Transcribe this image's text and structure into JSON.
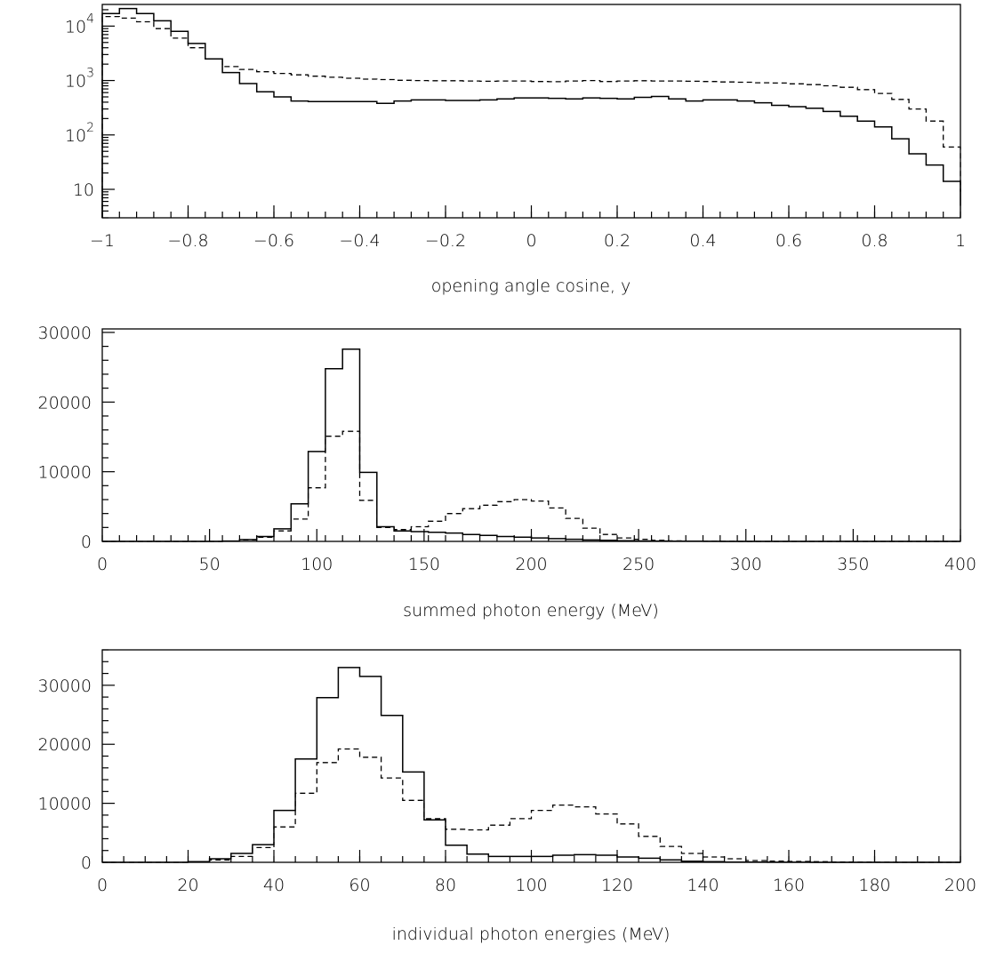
{
  "chart_data": [
    {
      "type": "histogram",
      "title": "",
      "xlabel": "opening angle cosine, y",
      "ylabel": "",
      "xlim": [
        -1,
        1
      ],
      "ylim": [
        3,
        25000
      ],
      "yscale": "log",
      "grid": false,
      "xticks": [
        -1,
        -0.8,
        -0.6,
        -0.4,
        -0.2,
        0,
        0.2,
        0.4,
        0.6,
        0.8,
        1
      ],
      "xtick_labels": [
        "−1",
        "−0.8",
        "−0.6",
        "−0.4",
        "−0.2",
        "0",
        "0.2",
        "0.4",
        "0.6",
        "0.8",
        "1"
      ],
      "yticks": [
        {
          "value": 10000,
          "base": "10",
          "exp": "4"
        },
        {
          "value": 1000,
          "base": "10",
          "exp": "3"
        },
        {
          "value": 100,
          "base": "10",
          "exp": "2"
        },
        {
          "value": 10,
          "base": "10",
          "exp": ""
        }
      ],
      "bin_edges_start": -1,
      "bin_width": 0.04,
      "series": [
        {
          "style": "solid",
          "values": [
            17000,
            21000,
            17000,
            12500,
            8000,
            4800,
            2500,
            1400,
            880,
            620,
            500,
            420,
            410,
            410,
            410,
            410,
            380,
            420,
            440,
            440,
            430,
            430,
            440,
            460,
            480,
            480,
            470,
            460,
            480,
            470,
            460,
            490,
            510,
            460,
            420,
            440,
            440,
            420,
            390,
            350,
            330,
            310,
            270,
            220,
            180,
            140,
            85,
            45,
            28,
            14,
            5
          ]
        },
        {
          "style": "dashed",
          "values": [
            15000,
            14000,
            12000,
            9000,
            6000,
            4000,
            2500,
            1800,
            1600,
            1450,
            1350,
            1270,
            1200,
            1150,
            1100,
            1060,
            1040,
            1010,
            1000,
            990,
            990,
            980,
            970,
            980,
            980,
            960,
            950,
            980,
            1000,
            960,
            980,
            990,
            980,
            980,
            970,
            960,
            940,
            930,
            910,
            900,
            870,
            840,
            800,
            750,
            680,
            580,
            450,
            300,
            180,
            60,
            9
          ]
        }
      ]
    },
    {
      "type": "histogram",
      "title": "",
      "xlabel": "summed photon energy (MeV)",
      "ylabel": "",
      "xlim": [
        0,
        400
      ],
      "ylim": [
        0,
        30500
      ],
      "yscale": "linear",
      "grid": false,
      "xticks": [
        0,
        50,
        100,
        150,
        200,
        250,
        300,
        350,
        400
      ],
      "xtick_labels": [
        "0",
        "50",
        "100",
        "150",
        "200",
        "250",
        "300",
        "350",
        "400"
      ],
      "yticks": [
        {
          "value": 0,
          "label": "0"
        },
        {
          "value": 10000,
          "label": "10000"
        },
        {
          "value": 20000,
          "label": "20000"
        },
        {
          "value": 30000,
          "label": "30000"
        }
      ],
      "bin_edges_start": 0,
      "bin_width": 8,
      "series": [
        {
          "style": "solid",
          "values": [
            0,
            0,
            0,
            0,
            0,
            0,
            0,
            50,
            250,
            700,
            1800,
            5400,
            12900,
            24800,
            27600,
            9900,
            2100,
            1500,
            1400,
            1300,
            1200,
            1000,
            850,
            700,
            600,
            500,
            400,
            300,
            200,
            150,
            100,
            70,
            50,
            30,
            20,
            10,
            5,
            0,
            0,
            0,
            0,
            0,
            0,
            0,
            0,
            0,
            0,
            0,
            0,
            0
          ]
        },
        {
          "style": "dashed",
          "values": [
            0,
            0,
            0,
            0,
            0,
            0,
            0,
            50,
            200,
            600,
            1500,
            3200,
            7700,
            15100,
            15800,
            5900,
            2000,
            1700,
            2100,
            2900,
            4000,
            4700,
            5200,
            5700,
            6000,
            5800,
            4800,
            3300,
            1900,
            1000,
            500,
            300,
            150,
            80,
            40,
            20,
            10,
            0,
            0,
            0,
            0,
            0,
            0,
            0,
            0,
            0,
            0,
            0,
            0,
            0
          ]
        }
      ]
    },
    {
      "type": "histogram",
      "title": "",
      "xlabel": "individual photon energies (MeV)",
      "ylabel": "",
      "xlim": [
        0,
        200
      ],
      "ylim": [
        0,
        36000
      ],
      "yscale": "linear",
      "grid": false,
      "xticks": [
        0,
        20,
        40,
        60,
        80,
        100,
        120,
        140,
        160,
        180,
        200
      ],
      "xtick_labels": [
        "0",
        "20",
        "40",
        "60",
        "80",
        "100",
        "120",
        "140",
        "160",
        "180",
        "200"
      ],
      "yticks": [
        {
          "value": 0,
          "label": "0"
        },
        {
          "value": 10000,
          "label": "10000"
        },
        {
          "value": 20000,
          "label": "20000"
        },
        {
          "value": 30000,
          "label": "30000"
        }
      ],
      "bin_edges_start": 0,
      "bin_width": 5,
      "series": [
        {
          "style": "solid",
          "values": [
            0,
            0,
            0,
            0,
            100,
            600,
            1500,
            3000,
            8800,
            17500,
            27900,
            33000,
            31500,
            24900,
            15300,
            7200,
            2900,
            1400,
            1000,
            1000,
            1000,
            1200,
            1300,
            1200,
            900,
            700,
            400,
            200,
            100,
            50,
            30,
            20,
            10,
            0,
            0,
            0,
            0,
            0,
            0,
            0
          ]
        },
        {
          "style": "dashed",
          "values": [
            0,
            0,
            0,
            0,
            50,
            400,
            1000,
            2500,
            6000,
            11700,
            16900,
            19200,
            17800,
            14300,
            10500,
            7400,
            5600,
            5500,
            6300,
            7400,
            8800,
            9700,
            9400,
            8200,
            6500,
            4400,
            2700,
            1500,
            900,
            600,
            300,
            200,
            150,
            100,
            50,
            30,
            10,
            5,
            0,
            0
          ]
        }
      ]
    }
  ]
}
